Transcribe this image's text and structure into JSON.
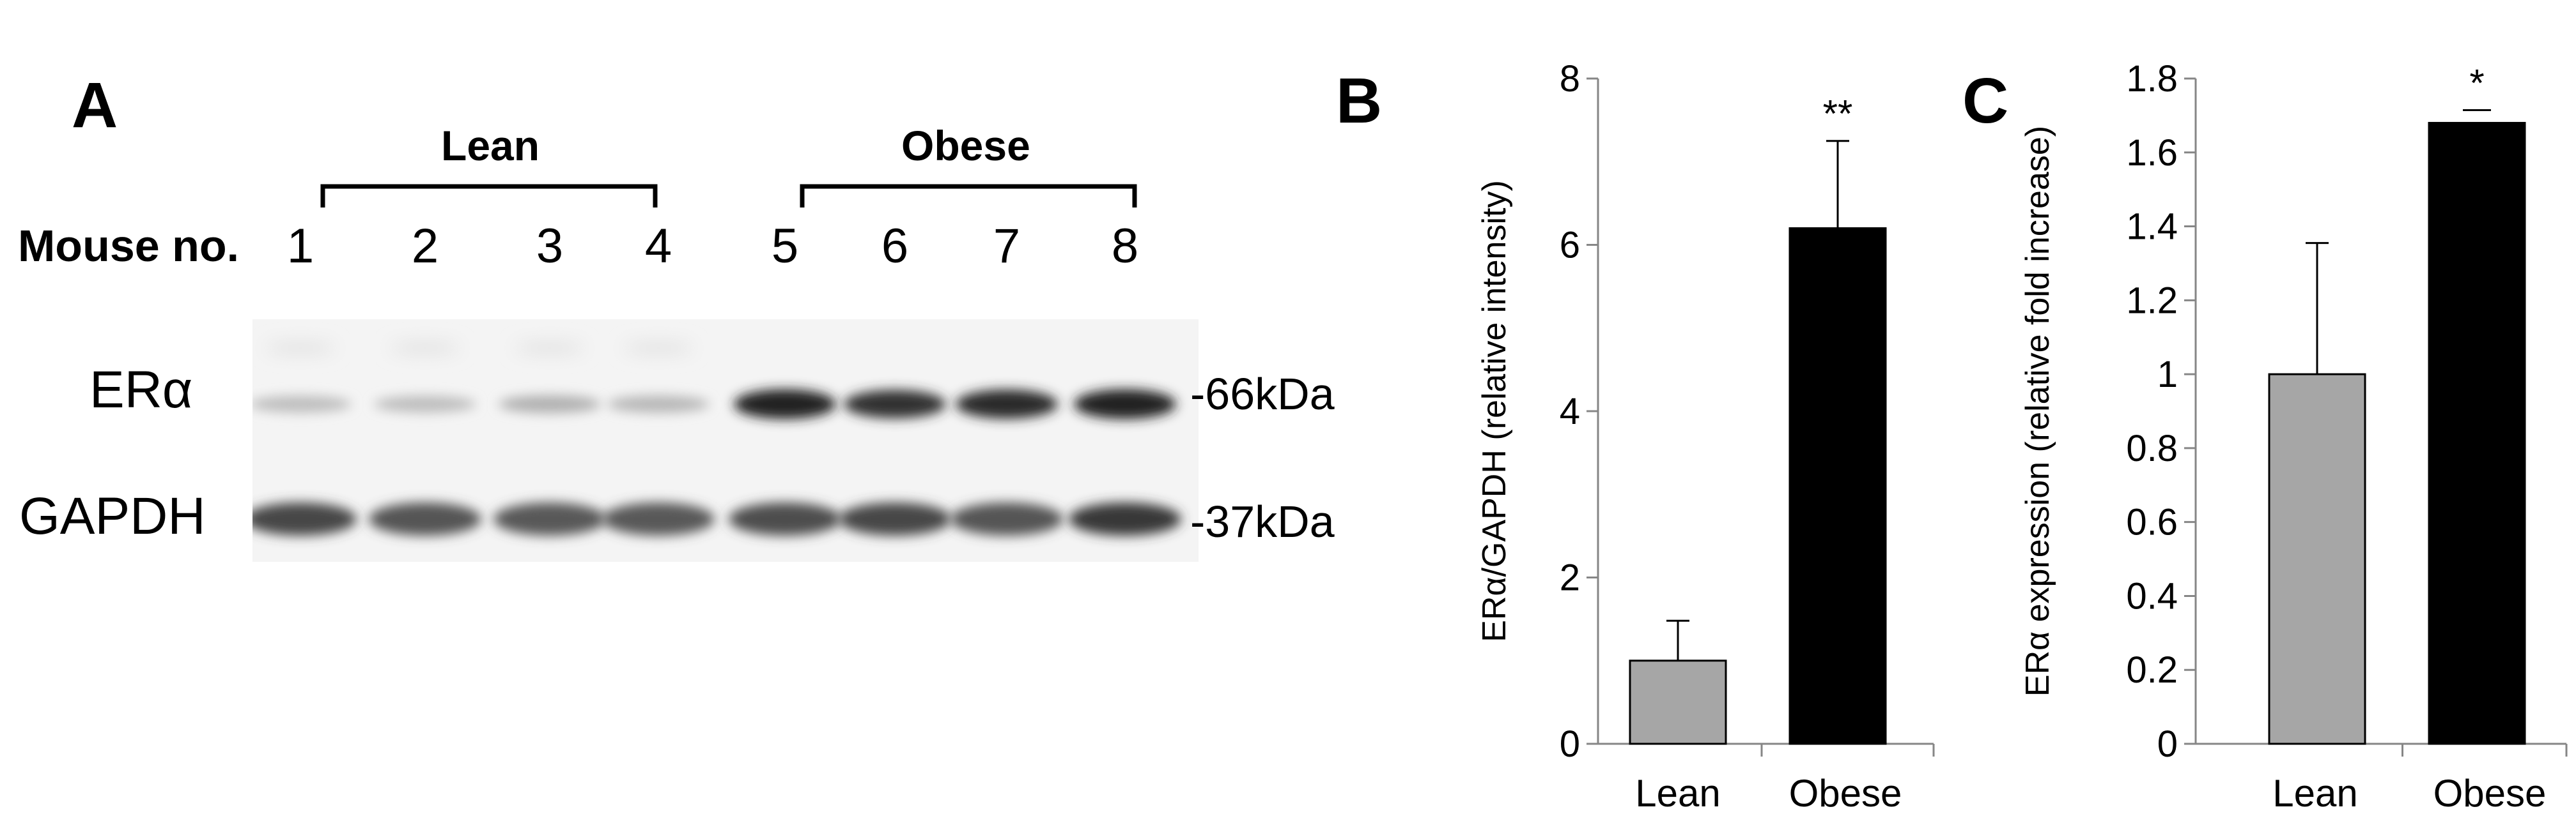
{
  "panels": {
    "a_letter": "A",
    "b_letter": "B",
    "c_letter": "C"
  },
  "blot": {
    "group_lean": "Lean",
    "group_obese": "Obese",
    "mouse_label": "Mouse no.",
    "lanes": [
      "1",
      "2",
      "3",
      "4",
      "5",
      "6",
      "7",
      "8"
    ],
    "row1_label": "ERα",
    "row2_label": "GAPDH",
    "row1_size": "-66kDa",
    "row2_size": "-37kDa",
    "era_band_intensity": [
      0.22,
      0.22,
      0.28,
      0.25,
      0.95,
      0.88,
      0.92,
      0.95
    ],
    "gapdh_band_intensity": [
      0.78,
      0.72,
      0.7,
      0.7,
      0.75,
      0.78,
      0.72,
      0.85
    ]
  },
  "chart_data": [
    {
      "type": "bar",
      "categories": [
        "Lean",
        "Obese"
      ],
      "values": [
        1.0,
        6.2
      ],
      "errors": [
        0.48,
        1.05
      ],
      "colors": [
        "#a6a6a6",
        "#000000"
      ],
      "annotations": [
        "",
        "**"
      ],
      "ylabel": "ERα/GAPDH (relative intensity)",
      "ylim": [
        0,
        8
      ],
      "yticks": [
        0,
        2,
        4,
        6,
        8
      ],
      "ytick_labels": [
        "0",
        "2",
        "4",
        "6",
        "8"
      ],
      "xlabel": "",
      "title": ""
    },
    {
      "type": "bar",
      "categories": [
        "Lean",
        "Obese"
      ],
      "values": [
        1.0,
        1.68
      ],
      "errors": [
        0.355,
        0.0
      ],
      "colors": [
        "#a6a6a6",
        "#000000"
      ],
      "annotations": [
        "",
        "*"
      ],
      "ylabel": "ERα expression (relative fold increase)",
      "ylim": [
        0,
        1.8
      ],
      "yticks": [
        0,
        0.2,
        0.4,
        0.6,
        0.8,
        1.0,
        1.2,
        1.4,
        1.6,
        1.8
      ],
      "ytick_labels": [
        "0",
        "0.2",
        "0.4",
        "0.6",
        "0.8",
        "1",
        "1.2",
        "1.4",
        "1.6",
        "1.8"
      ],
      "xlabel": "",
      "title": ""
    }
  ]
}
